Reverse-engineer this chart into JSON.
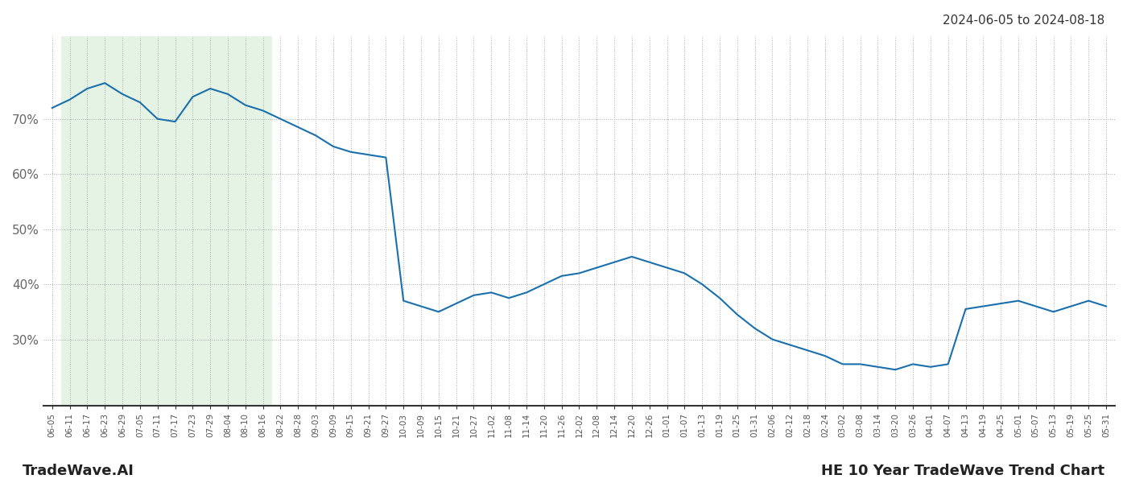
{
  "title_date_range": "2024-06-05 to 2024-08-18",
  "bottom_left_label": "TradeWave.AI",
  "bottom_right_label": "HE 10 Year TradeWave Trend Chart",
  "line_color": "#1a6fad",
  "highlight_color": "#d4ecd4",
  "highlight_alpha": 0.6,
  "background_color": "#ffffff",
  "grid_color": "#aaaaaa",
  "grid_style": ":",
  "ytick_labels": [
    "30%",
    "40%",
    "50%",
    "60%",
    "70%"
  ],
  "ytick_values": [
    30,
    40,
    50,
    60,
    70
  ],
  "ylim": [
    18,
    85
  ],
  "highlight_x_start_label": "06-11",
  "highlight_x_end_label": "08-16",
  "x_labels": [
    "06-05",
    "06-11",
    "06-17",
    "06-23",
    "06-29",
    "07-05",
    "07-11",
    "07-17",
    "07-23",
    "07-29",
    "08-04",
    "08-10",
    "08-16",
    "08-22",
    "08-28",
    "09-03",
    "09-09",
    "09-15",
    "09-21",
    "09-27",
    "10-03",
    "10-09",
    "10-15",
    "10-21",
    "10-27",
    "11-02",
    "11-08",
    "11-14",
    "11-20",
    "11-26",
    "12-02",
    "12-08",
    "12-14",
    "12-20",
    "12-26",
    "01-01",
    "01-07",
    "01-13",
    "01-19",
    "01-25",
    "01-31",
    "02-06",
    "02-12",
    "02-18",
    "02-24",
    "03-02",
    "03-08",
    "03-14",
    "03-20",
    "03-26",
    "04-01",
    "04-07",
    "04-13",
    "04-19",
    "04-25",
    "05-01",
    "05-07",
    "05-13",
    "05-19",
    "05-25",
    "05-31"
  ],
  "y_values": [
    72.0,
    73.5,
    75.5,
    76.5,
    74.5,
    73.0,
    70.0,
    69.5,
    74.0,
    75.5,
    74.5,
    72.5,
    71.5,
    70.0,
    68.5,
    67.0,
    65.0,
    64.0,
    63.5,
    63.0,
    37.0,
    36.0,
    35.0,
    36.5,
    38.0,
    38.5,
    37.5,
    38.5,
    40.0,
    41.5,
    42.0,
    43.0,
    44.0,
    45.0,
    44.0,
    43.0,
    42.0,
    40.0,
    37.5,
    34.5,
    32.0,
    30.0,
    29.0,
    28.0,
    27.0,
    25.5,
    25.5,
    25.0,
    24.5,
    25.5,
    25.0,
    25.5,
    35.5,
    36.0,
    36.5,
    37.0,
    36.0,
    35.0,
    36.0,
    37.0,
    36.0
  ],
  "note_fontsize": 10,
  "axis_label_fontsize": 7.5,
  "ytick_fontsize": 11,
  "title_fontsize": 11
}
